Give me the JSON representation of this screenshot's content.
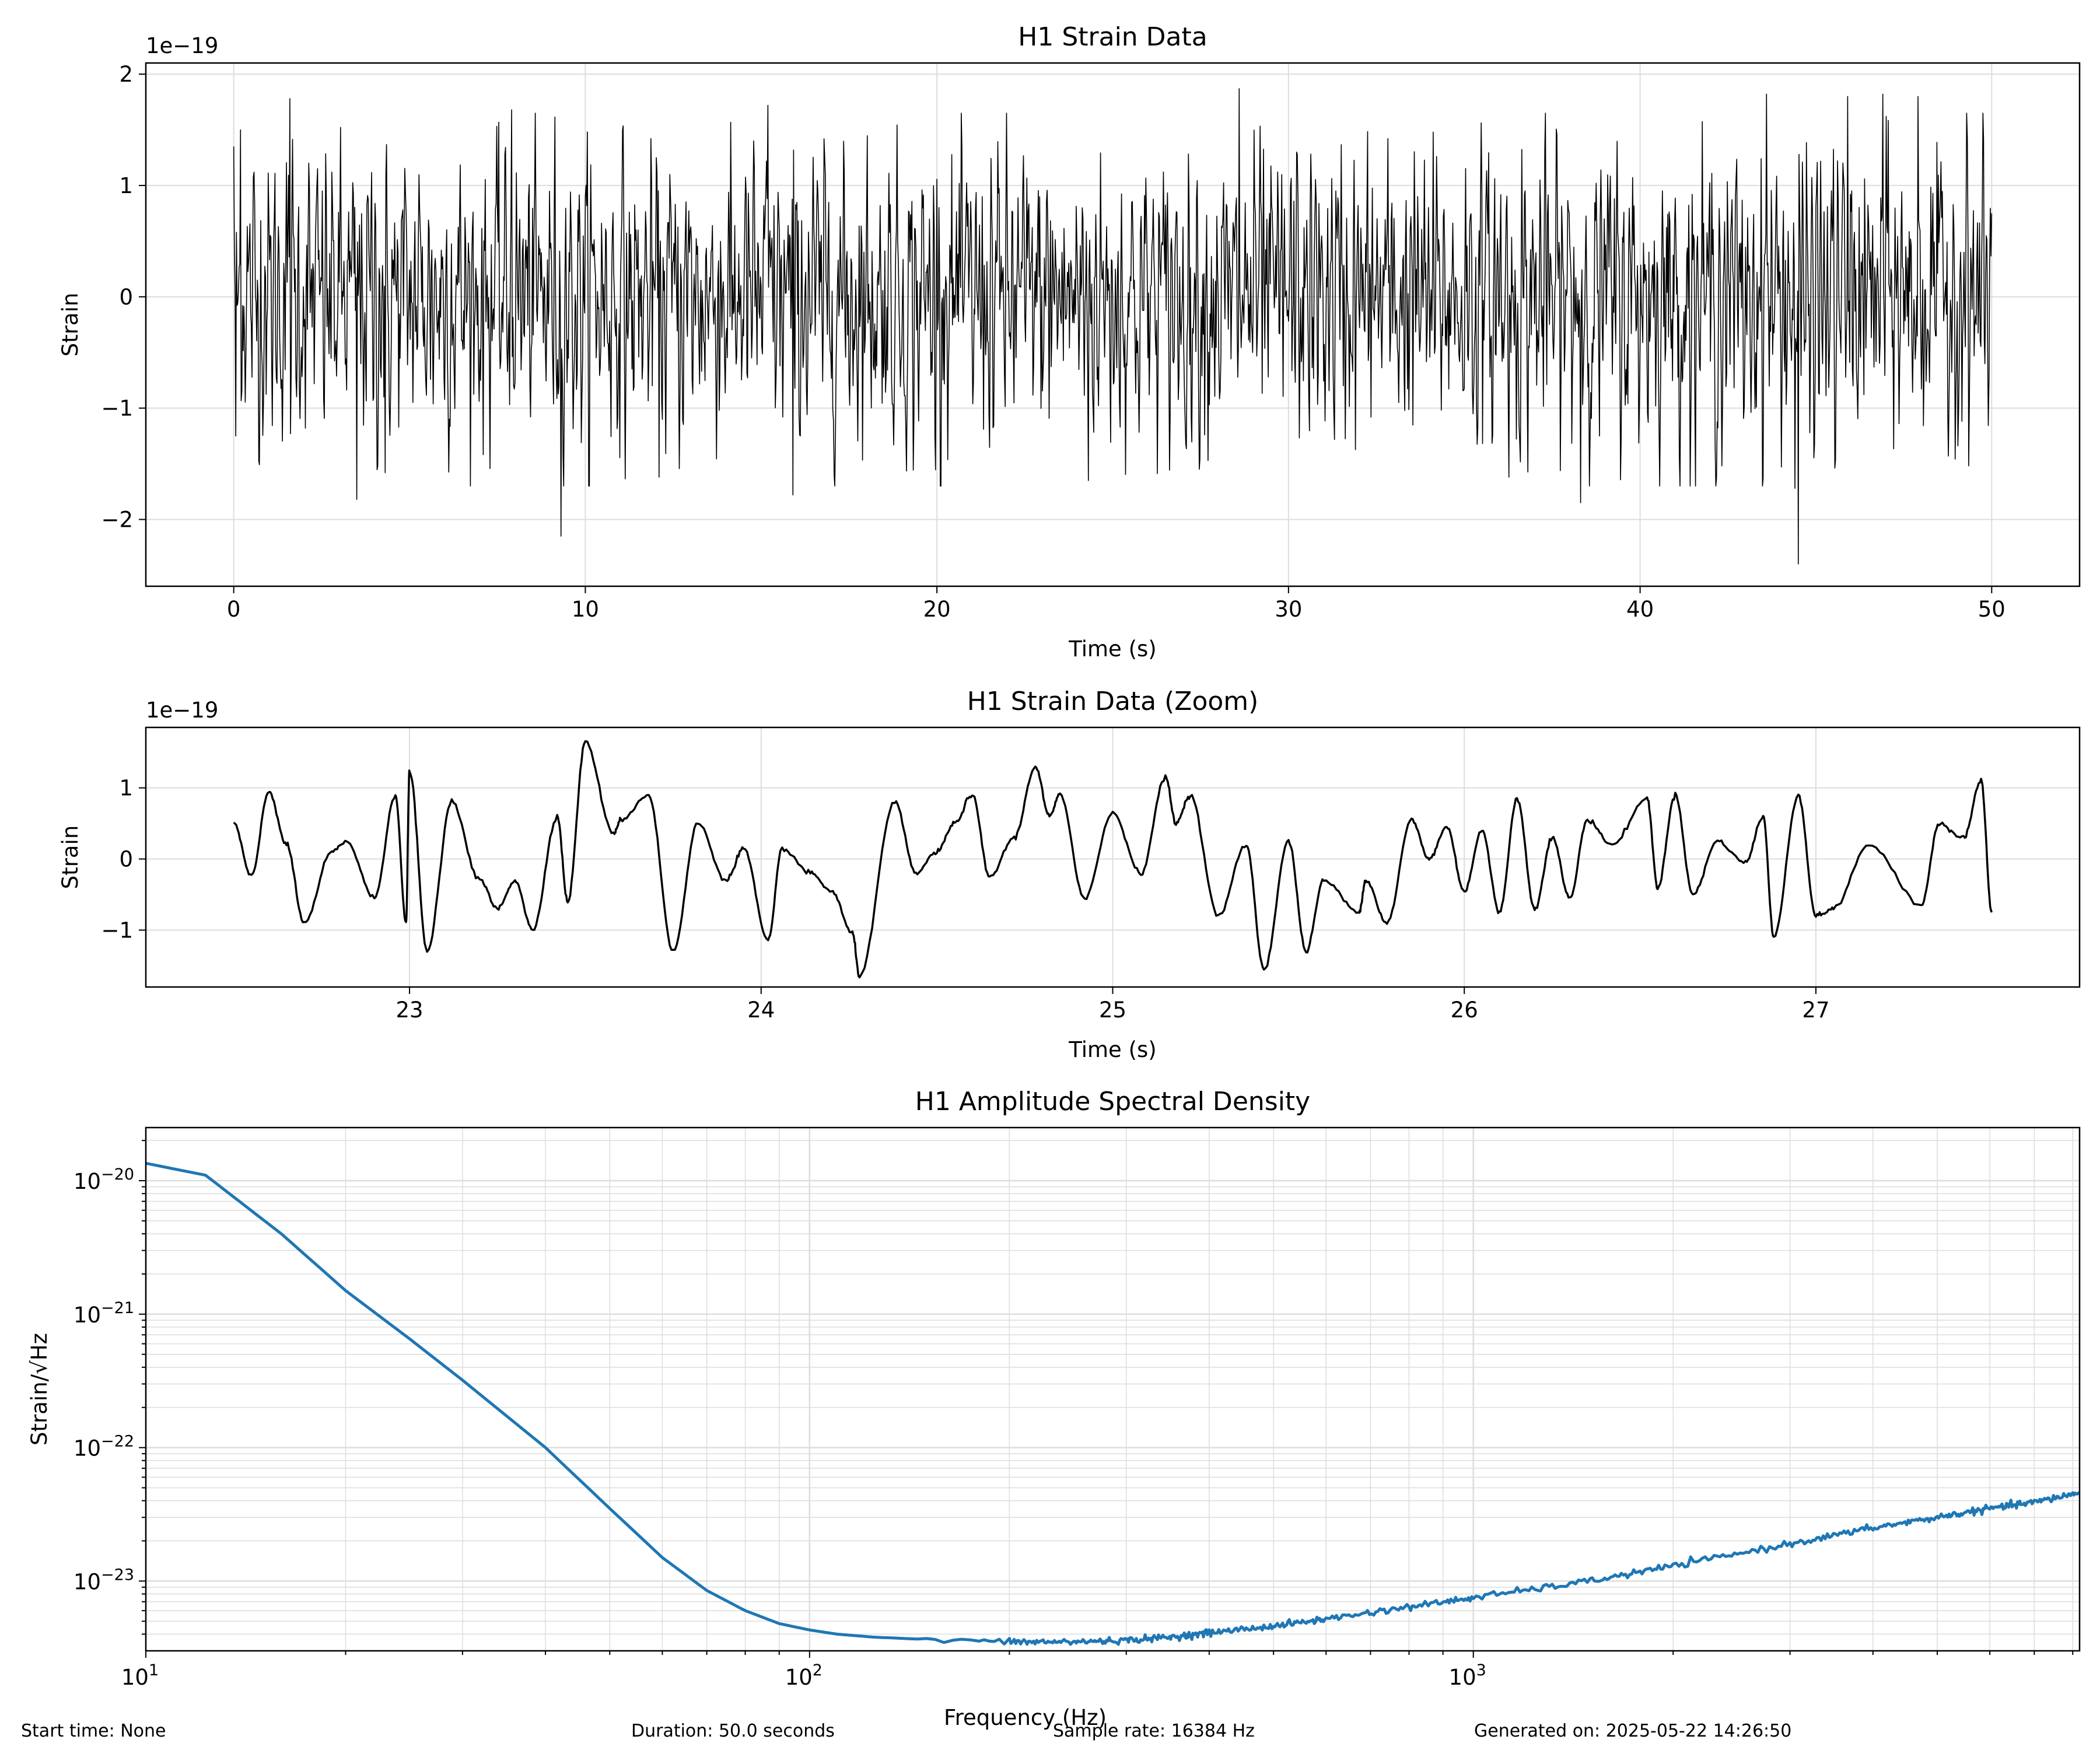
{
  "figure_footer": {
    "start_time": "Start time: None",
    "duration": "Duration: 50.0 seconds",
    "sample_rate": "Sample rate: 16384 Hz",
    "generated_on": "Generated on: 2025-05-22 14:26:50"
  },
  "colors": {
    "strain_line": "#000000",
    "asd_line": "#1f77b4",
    "grid": "#dddddd",
    "axes": "#000000"
  },
  "chart_data": [
    {
      "id": "strain-full",
      "type": "line",
      "title": "H1 Strain Data",
      "xlabel": "Time (s)",
      "ylabel": "Strain",
      "offset_label": "1e−19",
      "xlim": [
        -2.5,
        52.5
      ],
      "ylim": [
        -2.6,
        2.1
      ],
      "xticks": [
        0,
        10,
        20,
        30,
        40,
        50
      ],
      "xtick_labels": [
        "0",
        "10",
        "20",
        "30",
        "40",
        "50"
      ],
      "yticks": [
        -2,
        -1,
        0,
        1,
        2
      ],
      "ytick_labels": [
        "−2",
        "−1",
        "0",
        "1",
        "2"
      ],
      "grid": true,
      "series": [
        {
          "color": "#000000",
          "x_range": [
            0,
            50
          ],
          "y_unit": "1e-19 strain",
          "approx_std": 0.55,
          "extremes": [
            {
              "x": 0.0,
              "y": 1.35
            },
            {
              "x": 0.05,
              "y": -1.25
            },
            {
              "x": 0.2,
              "y": 1.5
            },
            {
              "x": 1.6,
              "y": 1.78
            },
            {
              "x": 3.5,
              "y": -1.82
            },
            {
              "x": 4.3,
              "y": -1.58
            },
            {
              "x": 7.9,
              "y": 1.68
            },
            {
              "x": 9.3,
              "y": -2.15
            },
            {
              "x": 12.1,
              "y": -1.62
            },
            {
              "x": 15.2,
              "y": 1.72
            },
            {
              "x": 15.9,
              "y": -1.78
            },
            {
              "x": 24.3,
              "y": -1.65
            },
            {
              "x": 28.6,
              "y": 1.87
            },
            {
              "x": 38.3,
              "y": -1.85
            },
            {
              "x": 43.6,
              "y": 1.82
            },
            {
              "x": 44.4,
              "y": -1.72
            },
            {
              "x": 44.5,
              "y": -2.4
            },
            {
              "x": 45.9,
              "y": 1.8
            },
            {
              "x": 46.9,
              "y": 1.82
            },
            {
              "x": 47.9,
              "y": 1.8
            },
            {
              "x": 50.0,
              "y": 0.75
            }
          ]
        }
      ]
    },
    {
      "id": "strain-zoom",
      "type": "line",
      "title": "H1 Strain Data (Zoom)",
      "xlabel": "Time (s)",
      "ylabel": "Strain",
      "offset_label": "1e−19",
      "xlim": [
        22.25,
        27.75
      ],
      "ylim": [
        -1.8,
        1.85
      ],
      "xticks": [
        23,
        24,
        25,
        26,
        27
      ],
      "xtick_labels": [
        "23",
        "24",
        "25",
        "26",
        "27"
      ],
      "yticks": [
        -1,
        0,
        1
      ],
      "ytick_labels": [
        "−1",
        "0",
        "1"
      ],
      "grid": true,
      "series": [
        {
          "color": "#000000",
          "points": [
            [
              22.5,
              0.5
            ],
            [
              22.55,
              -0.25
            ],
            [
              22.6,
              0.95
            ],
            [
              22.65,
              0.2
            ],
            [
              22.7,
              -0.9
            ],
            [
              22.78,
              0.1
            ],
            [
              22.82,
              0.25
            ],
            [
              22.9,
              -0.55
            ],
            [
              22.96,
              0.9
            ],
            [
              22.99,
              -0.9
            ],
            [
              23.0,
              1.25
            ],
            [
              23.05,
              -1.3
            ],
            [
              23.12,
              0.8
            ],
            [
              23.2,
              -0.3
            ],
            [
              23.25,
              -0.7
            ],
            [
              23.3,
              -0.3
            ],
            [
              23.35,
              -1.0
            ],
            [
              23.42,
              0.6
            ],
            [
              23.45,
              -0.6
            ],
            [
              23.5,
              1.65
            ],
            [
              23.58,
              0.35
            ],
            [
              23.6,
              0.55
            ],
            [
              23.68,
              0.9
            ],
            [
              23.75,
              -1.3
            ],
            [
              23.82,
              0.5
            ],
            [
              23.9,
              -0.3
            ],
            [
              23.95,
              0.15
            ],
            [
              24.02,
              -1.15
            ],
            [
              24.06,
              0.15
            ],
            [
              24.14,
              -0.2
            ],
            [
              24.2,
              -0.45
            ],
            [
              24.26,
              -1.05
            ],
            [
              24.28,
              -1.65
            ],
            [
              24.38,
              0.8
            ],
            [
              24.44,
              -0.2
            ],
            [
              24.5,
              0.1
            ],
            [
              24.55,
              0.5
            ],
            [
              24.6,
              0.9
            ],
            [
              24.65,
              -0.25
            ],
            [
              24.72,
              0.3
            ],
            [
              24.78,
              1.3
            ],
            [
              24.82,
              0.6
            ],
            [
              24.85,
              0.9
            ],
            [
              24.92,
              -0.55
            ],
            [
              25.0,
              0.65
            ],
            [
              25.08,
              -0.2
            ],
            [
              25.15,
              1.15
            ],
            [
              25.18,
              0.5
            ],
            [
              25.22,
              0.9
            ],
            [
              25.3,
              -0.8
            ],
            [
              25.38,
              0.2
            ],
            [
              25.43,
              -1.55
            ],
            [
              25.5,
              0.25
            ],
            [
              25.55,
              -1.3
            ],
            [
              25.6,
              -0.3
            ],
            [
              25.7,
              -0.75
            ],
            [
              25.72,
              -0.3
            ],
            [
              25.78,
              -0.9
            ],
            [
              25.85,
              0.55
            ],
            [
              25.9,
              0.0
            ],
            [
              25.95,
              0.45
            ],
            [
              26.0,
              -0.45
            ],
            [
              26.05,
              0.4
            ],
            [
              26.1,
              -0.75
            ],
            [
              26.15,
              0.85
            ],
            [
              26.2,
              -0.7
            ],
            [
              26.25,
              0.3
            ],
            [
              26.3,
              -0.55
            ],
            [
              26.35,
              0.55
            ],
            [
              26.42,
              0.2
            ],
            [
              26.52,
              0.85
            ],
            [
              26.55,
              -0.4
            ],
            [
              26.6,
              0.9
            ],
            [
              26.65,
              -0.5
            ],
            [
              26.72,
              0.25
            ],
            [
              26.8,
              -0.05
            ],
            [
              26.85,
              0.6
            ],
            [
              26.88,
              -1.1
            ],
            [
              26.95,
              0.9
            ],
            [
              27.0,
              -0.8
            ],
            [
              27.05,
              -0.7
            ],
            [
              27.15,
              0.2
            ],
            [
              27.3,
              -0.65
            ],
            [
              27.35,
              0.5
            ],
            [
              27.42,
              0.3
            ],
            [
              27.47,
              1.1
            ],
            [
              27.5,
              -0.75
            ]
          ]
        }
      ]
    },
    {
      "id": "asd",
      "type": "line",
      "title": "H1 Amplitude Spectral Density",
      "xlabel": "Frequency (Hz)",
      "ylabel": "Strain/√Hz",
      "xscale": "log",
      "yscale": "log",
      "xlim": [
        10,
        8192
      ],
      "ylim": [
        3e-24,
        2.5e-20
      ],
      "xticks": [
        10,
        100,
        1000
      ],
      "xtick_labels": [
        "10",
        "10",
        "10"
      ],
      "xtick_exponents": [
        "1",
        "2",
        "3"
      ],
      "yticks": [
        1e-23,
        1e-22,
        1e-21,
        1e-20
      ],
      "ytick_labels": [
        "10",
        "10",
        "10",
        "10"
      ],
      "ytick_exponents": [
        "−23",
        "−22",
        "−21",
        "−20"
      ],
      "grid": true,
      "series": [
        {
          "color": "#1f77b4",
          "points": [
            [
              10,
              1.35e-20
            ],
            [
              12.3,
              1.1e-20
            ],
            [
              16,
              4e-21
            ],
            [
              20,
              1.5e-21
            ],
            [
              25,
              6.5e-22
            ],
            [
              30,
              3.2e-22
            ],
            [
              40,
              1e-22
            ],
            [
              50,
              3.5e-23
            ],
            [
              60,
              1.5e-23
            ],
            [
              70,
              8.5e-24
            ],
            [
              80,
              6e-24
            ],
            [
              90,
              4.8e-24
            ],
            [
              100,
              4.3e-24
            ],
            [
              110,
              4e-24
            ],
            [
              125,
              3.8e-24
            ],
            [
              150,
              3.65e-24
            ],
            [
              180,
              3.55e-24
            ],
            [
              200,
              3.5e-24
            ],
            [
              250,
              3.5e-24
            ],
            [
              300,
              3.6e-24
            ],
            [
              350,
              3.8e-24
            ],
            [
              400,
              4.1e-24
            ],
            [
              500,
              4.6e-24
            ],
            [
              600,
              5.2e-24
            ],
            [
              800,
              6.4e-24
            ],
            [
              1000,
              7.5e-24
            ],
            [
              1500,
              1e-23
            ],
            [
              2000,
              1.3e-23
            ],
            [
              3000,
              1.9e-23
            ],
            [
              4000,
              2.5e-23
            ],
            [
              5000,
              3e-23
            ],
            [
              6000,
              3.5e-23
            ],
            [
              7000,
              3.9e-23
            ],
            [
              8192,
              4.6e-23
            ]
          ]
        }
      ]
    }
  ]
}
